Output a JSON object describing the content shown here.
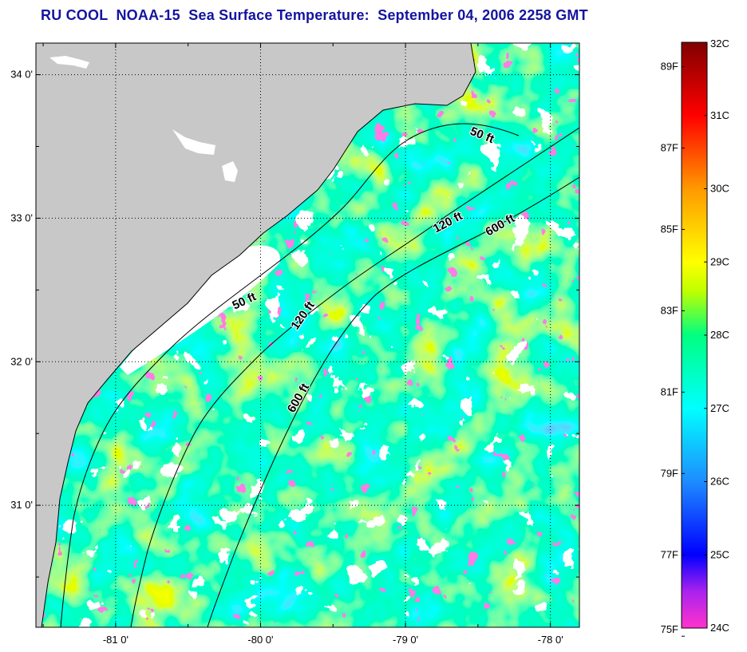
{
  "title": "RU COOL  NOAA-15  Sea Surface Temperature:  September 04, 2006 2258 GMT",
  "colors": {
    "land": "#c8c8c8",
    "cloud": "#ffffff",
    "title": "#1414a0",
    "frame": "#000000"
  },
  "axes": {
    "lat_ticks": [
      {
        "value": 34,
        "label": "34 0'"
      },
      {
        "value": 33,
        "label": "33 0'"
      },
      {
        "value": 32,
        "label": "32 0'"
      },
      {
        "value": 31,
        "label": "31 0'"
      }
    ],
    "lon_ticks": [
      {
        "value": -81,
        "label": "-81 0'"
      },
      {
        "value": -80,
        "label": "-80 0'"
      },
      {
        "value": -79,
        "label": "-79 0'"
      },
      {
        "value": -78,
        "label": "-78 0'"
      }
    ],
    "lon_range": [
      -81.55,
      -77.8
    ],
    "lat_range": [
      30.15,
      34.22
    ]
  },
  "contours": [
    {
      "label": "50 ft",
      "depth_ft": 50
    },
    {
      "label": "120 ft",
      "depth_ft": 120
    },
    {
      "label": "600 ft",
      "depth_ft": 600
    },
    {
      "label": "50 ft",
      "depth_ft": 50
    },
    {
      "label": "120 ft",
      "depth_ft": 120
    },
    {
      "label": "600 ft",
      "depth_ft": 600
    }
  ],
  "colorbar": {
    "range_c": [
      24,
      32
    ],
    "celsius_labels": [
      {
        "value": 32,
        "label": "32C"
      },
      {
        "value": 31,
        "label": "31C"
      },
      {
        "value": 30,
        "label": "30C"
      },
      {
        "value": 29,
        "label": "29C"
      },
      {
        "value": 28,
        "label": "28C"
      },
      {
        "value": 27,
        "label": "27C"
      },
      {
        "value": 26,
        "label": "26C"
      },
      {
        "value": 25,
        "label": "25C"
      },
      {
        "value": 24,
        "label": "24C"
      }
    ],
    "fahrenheit_labels": [
      {
        "value": 89,
        "label": "89F"
      },
      {
        "value": 87,
        "label": "87F"
      },
      {
        "value": 85,
        "label": "85F"
      },
      {
        "value": 83,
        "label": "83F"
      },
      {
        "value": 81,
        "label": "81F"
      },
      {
        "value": 79,
        "label": "79F"
      },
      {
        "value": 77,
        "label": "77F"
      },
      {
        "value": 75,
        "label": "75F"
      }
    ],
    "stops": [
      {
        "c": 24.0,
        "color": "#ff33cc"
      },
      {
        "c": 24.5,
        "color": "#aa22ee"
      },
      {
        "c": 25.0,
        "color": "#0000ff"
      },
      {
        "c": 26.0,
        "color": "#1e8cff"
      },
      {
        "c": 27.0,
        "color": "#00ffff"
      },
      {
        "c": 28.0,
        "color": "#00ff80"
      },
      {
        "c": 28.6,
        "color": "#bfff00"
      },
      {
        "c": 29.0,
        "color": "#ffff00"
      },
      {
        "c": 30.0,
        "color": "#ff9900"
      },
      {
        "c": 31.0,
        "color": "#ff0000"
      },
      {
        "c": 32.0,
        "color": "#800000"
      }
    ]
  }
}
